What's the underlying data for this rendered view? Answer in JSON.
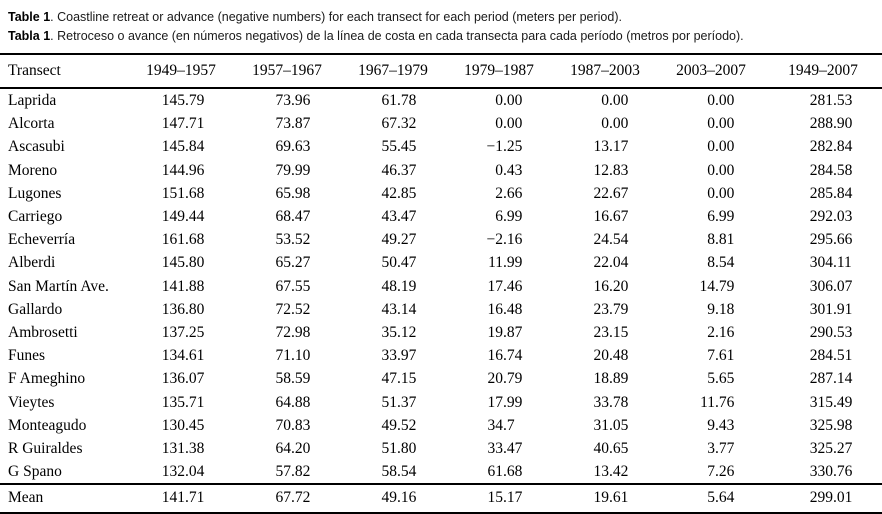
{
  "caption": {
    "en_prefix": "Table 1",
    "en_rest": ". Coastline retreat or advance (negative numbers) for each transect for each period (meters per period).",
    "es_prefix": "Tabla 1",
    "es_rest": ". Retroceso o avance (en números negativos) de la línea de costa en cada transecta para cada período (metros por período)."
  },
  "table": {
    "columns": [
      "Transect",
      "1949–1957",
      "1957–1967",
      "1967–1979",
      "1979–1987",
      "1987–2003",
      "2003–2007",
      "1949–2007"
    ],
    "rows": [
      {
        "label": "Laprida",
        "values": [
          "145.79",
          "73.96",
          "61.78",
          "0.00",
          "0.00",
          "0.00",
          "281.53"
        ]
      },
      {
        "label": "Alcorta",
        "values": [
          "147.71",
          "73.87",
          "67.32",
          "0.00",
          "0.00",
          "0.00",
          "288.90"
        ]
      },
      {
        "label": "Ascasubi",
        "values": [
          "145.84",
          "69.63",
          "55.45",
          "−1.25",
          "13.17",
          "0.00",
          "282.84"
        ]
      },
      {
        "label": "Moreno",
        "values": [
          "144.96",
          "79.99",
          "46.37",
          "0.43",
          "12.83",
          "0.00",
          "284.58"
        ]
      },
      {
        "label": "Lugones",
        "values": [
          "151.68",
          "65.98",
          "42.85",
          "2.66",
          "22.67",
          "0.00",
          "285.84"
        ]
      },
      {
        "label": "Carriego",
        "values": [
          "149.44",
          "68.47",
          "43.47",
          "6.99",
          "16.67",
          "6.99",
          "292.03"
        ]
      },
      {
        "label": "Echeverría",
        "values": [
          "161.68",
          "53.52",
          "49.27",
          "−2.16",
          "24.54",
          "8.81",
          "295.66"
        ]
      },
      {
        "label": "Alberdi",
        "values": [
          "145.80",
          "65.27",
          "50.47",
          "11.99",
          "22.04",
          "8.54",
          "304.11"
        ]
      },
      {
        "label": "San Martín Ave.",
        "values": [
          "141.88",
          "67.55",
          "48.19",
          "17.46",
          "16.20",
          "14.79",
          "306.07"
        ]
      },
      {
        "label": "Gallardo",
        "values": [
          "136.80",
          "72.52",
          "43.14",
          "16.48",
          "23.79",
          "9.18",
          "301.91"
        ]
      },
      {
        "label": "Ambrosetti",
        "values": [
          "137.25",
          "72.98",
          "35.12",
          "19.87",
          "23.15",
          "2.16",
          "290.53"
        ]
      },
      {
        "label": "Funes",
        "values": [
          "134.61",
          "71.10",
          "33.97",
          "16.74",
          "20.48",
          "7.61",
          "284.51"
        ]
      },
      {
        "label": "F Ameghino",
        "values": [
          "136.07",
          "58.59",
          "47.15",
          "20.79",
          "18.89",
          "5.65",
          "287.14"
        ]
      },
      {
        "label": "Vieytes",
        "values": [
          "135.71",
          "64.88",
          "51.37",
          "17.99",
          "33.78",
          "11.76",
          "315.49"
        ]
      },
      {
        "label": "Monteagudo",
        "values": [
          "130.45",
          "70.83",
          "49.52",
          "34.7",
          "31.05",
          "9.43",
          "325.98"
        ]
      },
      {
        "label": "R Guiraldes",
        "values": [
          "131.38",
          "64.20",
          "51.80",
          "33.47",
          "40.65",
          "3.77",
          "325.27"
        ]
      },
      {
        "label": "G Spano",
        "values": [
          "132.04",
          "57.82",
          "58.54",
          "61.68",
          "13.42",
          "7.26",
          "330.76"
        ]
      }
    ],
    "mean_row": {
      "label": "Mean",
      "values": [
        "141.71",
        "67.72",
        "49.16",
        "15.17",
        "19.61",
        "5.64",
        "299.01"
      ]
    }
  }
}
